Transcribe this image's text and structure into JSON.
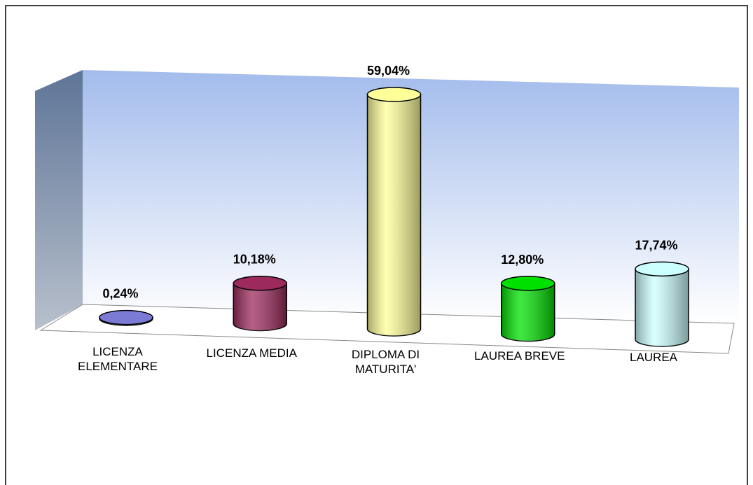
{
  "chart_data": {
    "type": "cylinder",
    "categories": [
      "LICENZA\nELEMENTARE",
      "LICENZA MEDIA",
      "DIPLOMA DI\nMATURITA'",
      "LAUREA BREVE",
      "LAUREA"
    ],
    "values": [
      0.24,
      10.18,
      59.04,
      12.8,
      17.74
    ],
    "value_labels": [
      "0,24%",
      "10,18%",
      "59,04%",
      "12,80%",
      "17,74%"
    ],
    "colors": [
      "#7b7bd6",
      "#9c2a5c",
      "#ffff99",
      "#00e000",
      "#ccffff"
    ]
  }
}
